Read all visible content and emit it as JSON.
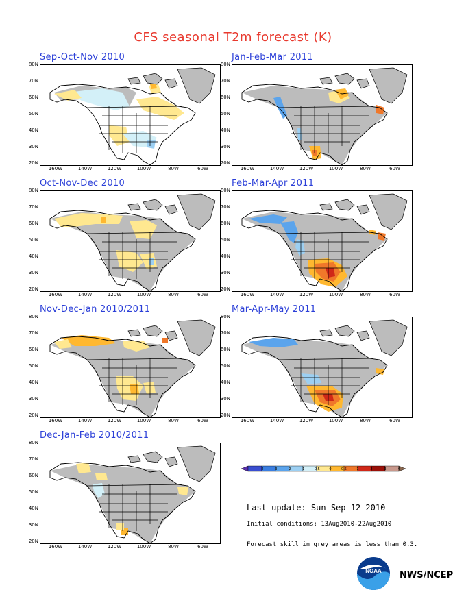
{
  "title": "CFS seasonal T2m forecast (K)",
  "panels": [
    {
      "title": "Sep-Oct-Nov 2010",
      "pattern": "son"
    },
    {
      "title": "Jan-Feb-Mar 2011",
      "pattern": "jfm"
    },
    {
      "title": "Oct-Nov-Dec 2010",
      "pattern": "ond"
    },
    {
      "title": "Feb-Mar-Apr 2011",
      "pattern": "fma"
    },
    {
      "title": "Nov-Dec-Jan 2010/2011",
      "pattern": "ndj"
    },
    {
      "title": "Mar-Apr-May 2011",
      "pattern": "mam"
    },
    {
      "title": "Dec-Jan-Feb 2010/2011",
      "pattern": "djf"
    }
  ],
  "lat_labels": [
    "80N",
    "70N",
    "60N",
    "50N",
    "40N",
    "30N",
    "20N"
  ],
  "lon_labels": [
    "160W",
    "140W",
    "120W",
    "100W",
    "80W",
    "60W"
  ],
  "colorbar": {
    "labels": [
      "-4",
      "-3",
      "-2",
      "-1",
      "-0.5",
      "0",
      "0.5",
      "1",
      "2",
      "3",
      "4"
    ],
    "colors": [
      "#5a2fb0",
      "#3a4ed0",
      "#3a7ee0",
      "#5ba4ec",
      "#9ccff2",
      "#d3f0f8",
      "#ffe890",
      "#ffb830",
      "#f0782a",
      "#d02818",
      "#9a1008",
      "#c8988c",
      "#8a6850"
    ]
  },
  "last_update": "Last update: Sun Sep 12 2010",
  "initial_conditions": "Initial conditions: 13Aug2010-22Aug2010",
  "skill_note": "Forecast skill in grey areas is less than 0.3.",
  "agency": "NWS/NCEP",
  "logo_text": "NOAA"
}
